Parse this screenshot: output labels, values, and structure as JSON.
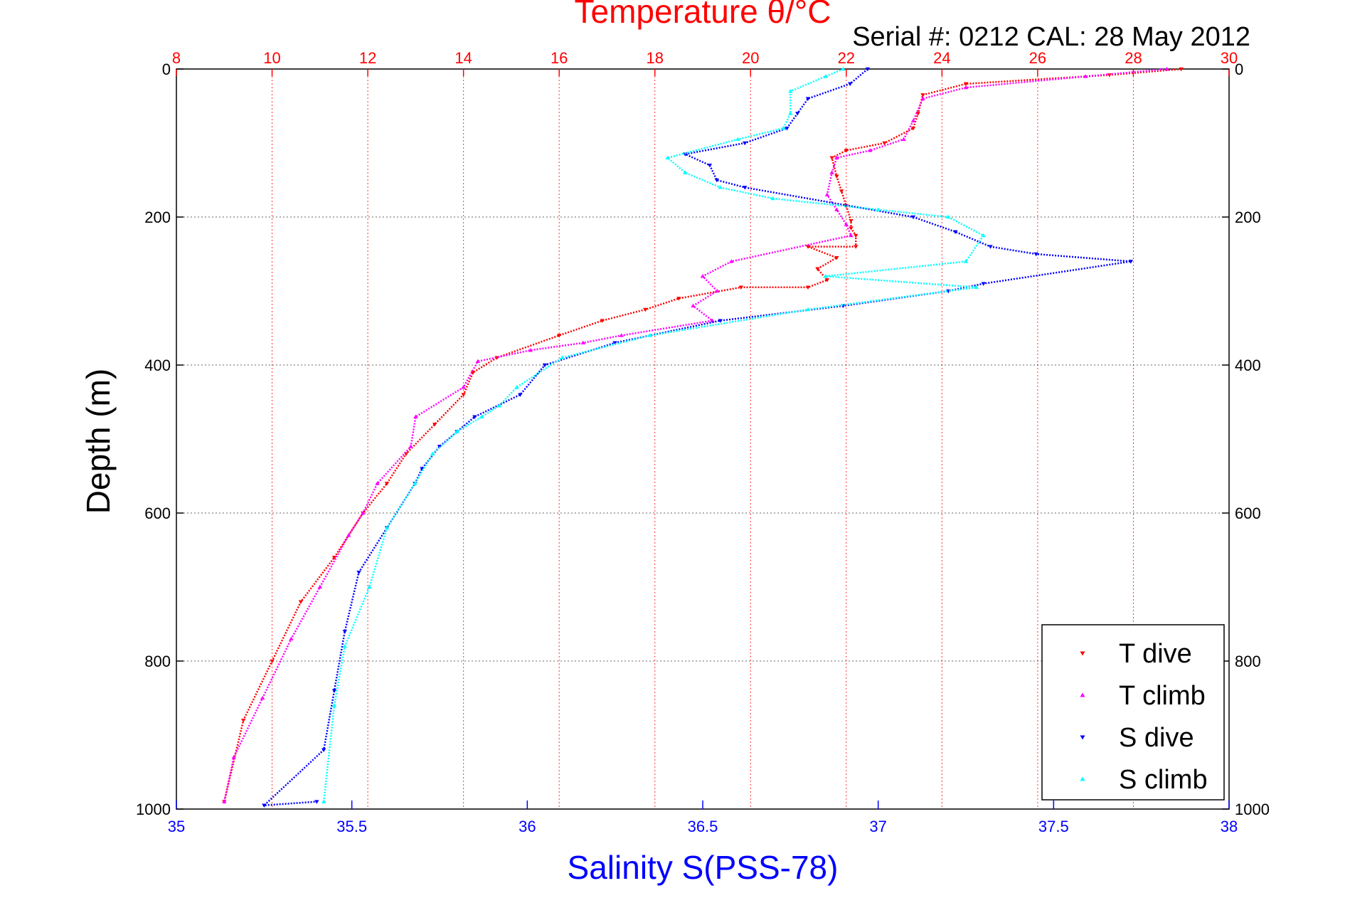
{
  "chart_data": {
    "type": "scatter",
    "title": "Temperature θ/°C",
    "annotation": "Serial #: 0212  CAL: 28 May 2012",
    "ylabel": "Depth (m)",
    "xlabel_bottom": "Salinity S(PSS-78)",
    "y_reversed": true,
    "ylim": [
      0,
      1000
    ],
    "y_ticks": [
      "0",
      "200",
      "400",
      "600",
      "800",
      "1000"
    ],
    "y_tick_values": [
      0,
      200,
      400,
      600,
      800,
      1000
    ],
    "temperature_axis": {
      "range": [
        8,
        30
      ],
      "ticks": [
        "8",
        "10",
        "12",
        "14",
        "16",
        "18",
        "20",
        "22",
        "24",
        "26",
        "28",
        "30"
      ],
      "tick_values": [
        8,
        10,
        12,
        14,
        16,
        18,
        20,
        22,
        24,
        26,
        28,
        30
      ],
      "color": "#ff0000"
    },
    "salinity_axis": {
      "range": [
        35,
        38
      ],
      "ticks": [
        "35",
        "35.5",
        "36",
        "36.5",
        "37",
        "37.5",
        "38"
      ],
      "tick_values": [
        35,
        35.5,
        36,
        36.5,
        37,
        37.5,
        38
      ],
      "color": "#0000ff"
    },
    "grid": "on",
    "legend_position": "bottom-right",
    "series": [
      {
        "name": "T dive",
        "axis": "temperature",
        "color": "#ff0000",
        "marker": "triangle-down",
        "x": [
          29.0,
          27.5,
          24.5,
          23.6,
          23.5,
          23.4,
          22.8,
          22.0,
          21.7,
          21.8,
          21.9,
          22.0,
          22.1,
          22.1,
          22.2,
          22.2,
          21.2,
          21.8,
          21.4,
          21.6,
          21.2,
          19.8,
          18.5,
          17.8,
          16.9,
          16.0,
          14.7,
          14.2,
          14.0,
          13.4,
          12.8,
          12.4,
          11.9,
          11.3,
          10.6,
          10.0,
          9.4,
          9.0
        ],
        "y": [
          0,
          8,
          20,
          35,
          60,
          80,
          100,
          110,
          120,
          145,
          165,
          185,
          205,
          215,
          225,
          240,
          240,
          255,
          270,
          285,
          295,
          295,
          310,
          325,
          340,
          360,
          390,
          410,
          440,
          480,
          520,
          560,
          600,
          660,
          720,
          800,
          880,
          990
        ]
      },
      {
        "name": "T climb",
        "axis": "temperature",
        "color": "#ff00ff",
        "marker": "triangle-up",
        "x": [
          28.7,
          27.0,
          24.5,
          23.6,
          23.4,
          23.2,
          22.5,
          21.8,
          21.7,
          21.6,
          21.8,
          22.0,
          22.1,
          19.6,
          19.0,
          19.3,
          18.8,
          19.2,
          17.3,
          16.5,
          15.4,
          14.3,
          14.0,
          13.0,
          12.9,
          12.2,
          11.9,
          11.6,
          11.0,
          10.4,
          9.8,
          9.2,
          9.0
        ],
        "y": [
          0,
          10,
          25,
          40,
          70,
          95,
          110,
          120,
          140,
          170,
          190,
          210,
          225,
          260,
          280,
          300,
          320,
          340,
          360,
          370,
          380,
          395,
          430,
          470,
          510,
          560,
          600,
          630,
          700,
          770,
          850,
          930,
          990
        ]
      },
      {
        "name": "S dive",
        "axis": "salinity",
        "color": "#0000ff",
        "marker": "triangle-down",
        "x": [
          36.97,
          36.92,
          36.8,
          36.77,
          36.74,
          36.62,
          36.45,
          36.52,
          36.54,
          36.62,
          37.1,
          37.22,
          37.32,
          37.45,
          37.72,
          37.3,
          37.2,
          36.9,
          36.55,
          36.25,
          36.05,
          35.98,
          35.85,
          35.8,
          35.75,
          35.7,
          35.68,
          35.6,
          35.52,
          35.48,
          35.45,
          35.42,
          35.25,
          35.4
        ],
        "y": [
          0,
          20,
          40,
          60,
          80,
          100,
          115,
          130,
          150,
          160,
          200,
          220,
          240,
          250,
          260,
          290,
          300,
          320,
          340,
          370,
          400,
          440,
          470,
          490,
          510,
          540,
          560,
          620,
          680,
          760,
          840,
          920,
          995,
          990
        ]
      },
      {
        "name": "S climb",
        "axis": "salinity",
        "color": "#00ffff",
        "marker": "triangle-up",
        "x": [
          36.9,
          36.85,
          36.75,
          36.75,
          36.73,
          36.6,
          36.4,
          36.45,
          36.55,
          36.7,
          37.0,
          37.2,
          37.3,
          37.25,
          36.85,
          37.28,
          36.8,
          36.35,
          36.1,
          35.97,
          35.92,
          35.87,
          35.8,
          35.73,
          35.68,
          35.6,
          35.55,
          35.48,
          35.45,
          35.42
        ],
        "y": [
          0,
          10,
          30,
          60,
          80,
          95,
          120,
          140,
          160,
          175,
          190,
          200,
          225,
          260,
          280,
          295,
          325,
          360,
          390,
          430,
          455,
          470,
          490,
          520,
          560,
          620,
          700,
          780,
          860,
          990
        ]
      }
    ]
  }
}
